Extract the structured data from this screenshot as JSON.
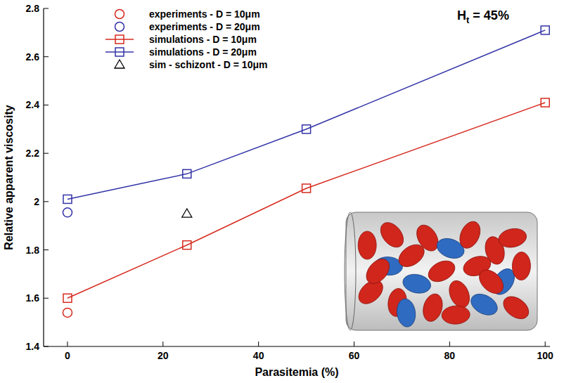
{
  "chart_data": {
    "type": "line",
    "x_label": "Parasitemia (%)",
    "y_label": "Relative apparent viscosity",
    "annotations": [
      {
        "text": "H",
        "subscript": "t",
        "suffix": " = 45%"
      }
    ],
    "xlim": [
      -5,
      101
    ],
    "xticks": [
      0,
      20,
      40,
      60,
      80,
      100
    ],
    "ylim": [
      1.4,
      2.8
    ],
    "yticks": [
      {
        "value": 1.4,
        "label": "1.4"
      },
      {
        "value": 1.6,
        "label": "1.6"
      },
      {
        "value": 1.8,
        "label": "1.8"
      },
      2,
      {
        "value": 2.2,
        "label": "2.2"
      },
      {
        "value": 2.4,
        "label": "2.4"
      },
      {
        "value": 2.6,
        "label": "2.6"
      },
      {
        "value": 2.8,
        "label": "2.8"
      }
    ],
    "grid": false,
    "legend": "top-left",
    "series": [
      {
        "name": "experiments - D = 10μm",
        "type": "scatter",
        "marker": "circle",
        "color": "#d62a1e",
        "x": [
          0
        ],
        "values": [
          1.54
        ]
      },
      {
        "name": "experiments - D = 20μm",
        "type": "scatter",
        "marker": "circle",
        "color": "#3333a8",
        "x": [
          0
        ],
        "values": [
          1.955
        ]
      },
      {
        "name": "simulations - D = 10μm",
        "type": "line",
        "marker": "square",
        "color": "#d62a1e",
        "x": [
          0,
          25,
          50,
          100
        ],
        "values": [
          1.6,
          1.82,
          2.055,
          2.41
        ]
      },
      {
        "name": "simulations - D = 20μm",
        "type": "line",
        "marker": "square",
        "color": "#3333a8",
        "x": [
          0,
          25,
          50,
          100
        ],
        "values": [
          2.01,
          2.115,
          2.3,
          2.71
        ]
      },
      {
        "name": "sim - schizont - D = 10μm",
        "type": "scatter",
        "marker": "triangle",
        "color": "#000000",
        "x": [
          25
        ],
        "values": [
          1.95
        ]
      }
    ]
  }
}
